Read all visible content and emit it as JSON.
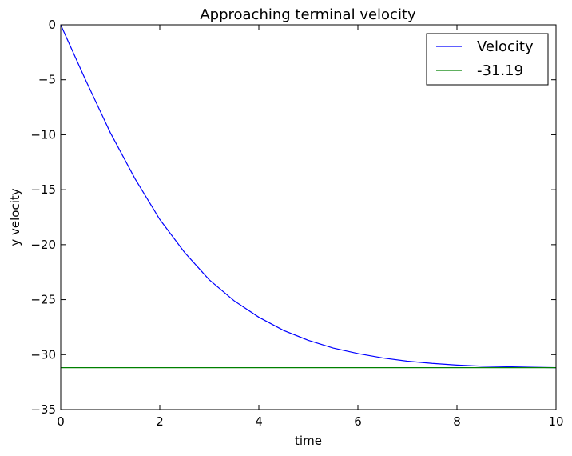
{
  "chart_data": {
    "type": "line",
    "title": "Approaching terminal velocity",
    "xlabel": "time",
    "ylabel": "y velocity",
    "xlim": [
      0,
      10
    ],
    "ylim": [
      -35,
      0
    ],
    "xticks": [
      0,
      2,
      4,
      6,
      8,
      10
    ],
    "xtick_labels": [
      "0",
      "2",
      "4",
      "6",
      "8",
      "10"
    ],
    "yticks": [
      0,
      -5,
      -10,
      -15,
      -20,
      -25,
      -30,
      -35
    ],
    "ytick_labels": [
      "0",
      "−5",
      "−10",
      "−15",
      "−20",
      "−25",
      "−30",
      "−35"
    ],
    "grid": false,
    "legend_position": "top-right",
    "series": [
      {
        "name": "Velocity",
        "color": "#0000ff",
        "x": [
          0,
          0.5,
          1,
          1.5,
          2,
          2.5,
          3,
          3.5,
          4,
          4.5,
          5,
          5.5,
          6,
          6.5,
          7,
          7.5,
          8,
          8.5,
          9,
          9.5,
          10
        ],
        "y": [
          0,
          -5.0,
          -9.8,
          -14.0,
          -17.7,
          -20.7,
          -23.2,
          -25.1,
          -26.6,
          -27.8,
          -28.7,
          -29.4,
          -29.9,
          -30.3,
          -30.6,
          -30.8,
          -30.95,
          -31.05,
          -31.1,
          -31.15,
          -31.19
        ]
      },
      {
        "name": "-31.19",
        "color": "#008000",
        "x": [
          0,
          10
        ],
        "y": [
          -31.19,
          -31.19
        ]
      }
    ]
  }
}
